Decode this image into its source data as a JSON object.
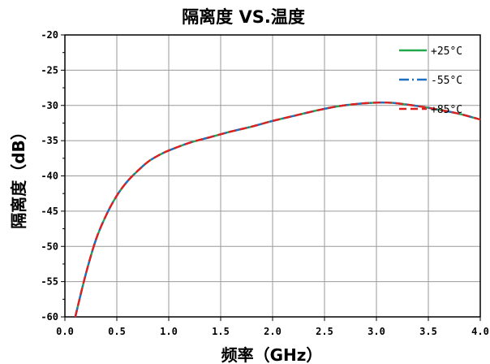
{
  "chart_data": {
    "type": "line",
    "title": "隔离度 VS.温度",
    "xlabel": "频率（GHz）",
    "ylabel": "隔离度（dB）",
    "xlim": [
      0.0,
      4.0
    ],
    "ylim": [
      -60,
      -20
    ],
    "x_ticks": [
      "0.0",
      "0.5",
      "1.0",
      "1.5",
      "2.0",
      "2.5",
      "3.0",
      "3.5",
      "4.0"
    ],
    "y_ticks": [
      "-20",
      "-25",
      "-30",
      "-35",
      "-40",
      "-45",
      "-50",
      "-55",
      "-60"
    ],
    "grid": true,
    "legend_position": "top-right",
    "x": [
      0.1,
      0.2,
      0.3,
      0.4,
      0.5,
      0.6,
      0.7,
      0.8,
      0.9,
      1.0,
      1.2,
      1.4,
      1.6,
      1.8,
      2.0,
      2.2,
      2.4,
      2.6,
      2.8,
      3.0,
      3.1,
      3.2,
      3.4,
      3.6,
      3.8,
      4.0
    ],
    "series": [
      {
        "name": "+25°C",
        "color": "#22a84a",
        "dash": "solid",
        "values": [
          -60.0,
          -54.0,
          -49.0,
          -45.5,
          -42.8,
          -40.8,
          -39.3,
          -38.0,
          -37.1,
          -36.4,
          -35.3,
          -34.5,
          -33.7,
          -33.0,
          -32.2,
          -31.5,
          -30.8,
          -30.2,
          -29.8,
          -29.6,
          -29.6,
          -29.7,
          -30.1,
          -30.6,
          -31.2,
          -32.0
        ]
      },
      {
        "name": "-55°C",
        "color": "#1f6fc0",
        "dash": "dashdot",
        "values": [
          -60.0,
          -54.0,
          -49.0,
          -45.5,
          -42.8,
          -40.8,
          -39.3,
          -38.0,
          -37.1,
          -36.4,
          -35.3,
          -34.5,
          -33.7,
          -33.0,
          -32.2,
          -31.5,
          -30.8,
          -30.2,
          -29.8,
          -29.6,
          -29.6,
          -29.7,
          -30.1,
          -30.6,
          -31.2,
          -32.0
        ]
      },
      {
        "name": "+85°C",
        "color": "#e02020",
        "dash": "dash",
        "values": [
          -60.0,
          -54.0,
          -49.0,
          -45.5,
          -42.8,
          -40.8,
          -39.3,
          -38.0,
          -37.1,
          -36.4,
          -35.3,
          -34.5,
          -33.7,
          -33.0,
          -32.2,
          -31.5,
          -30.8,
          -30.2,
          -29.8,
          -29.6,
          -29.6,
          -29.7,
          -30.1,
          -30.6,
          -31.2,
          -32.0
        ]
      }
    ]
  }
}
